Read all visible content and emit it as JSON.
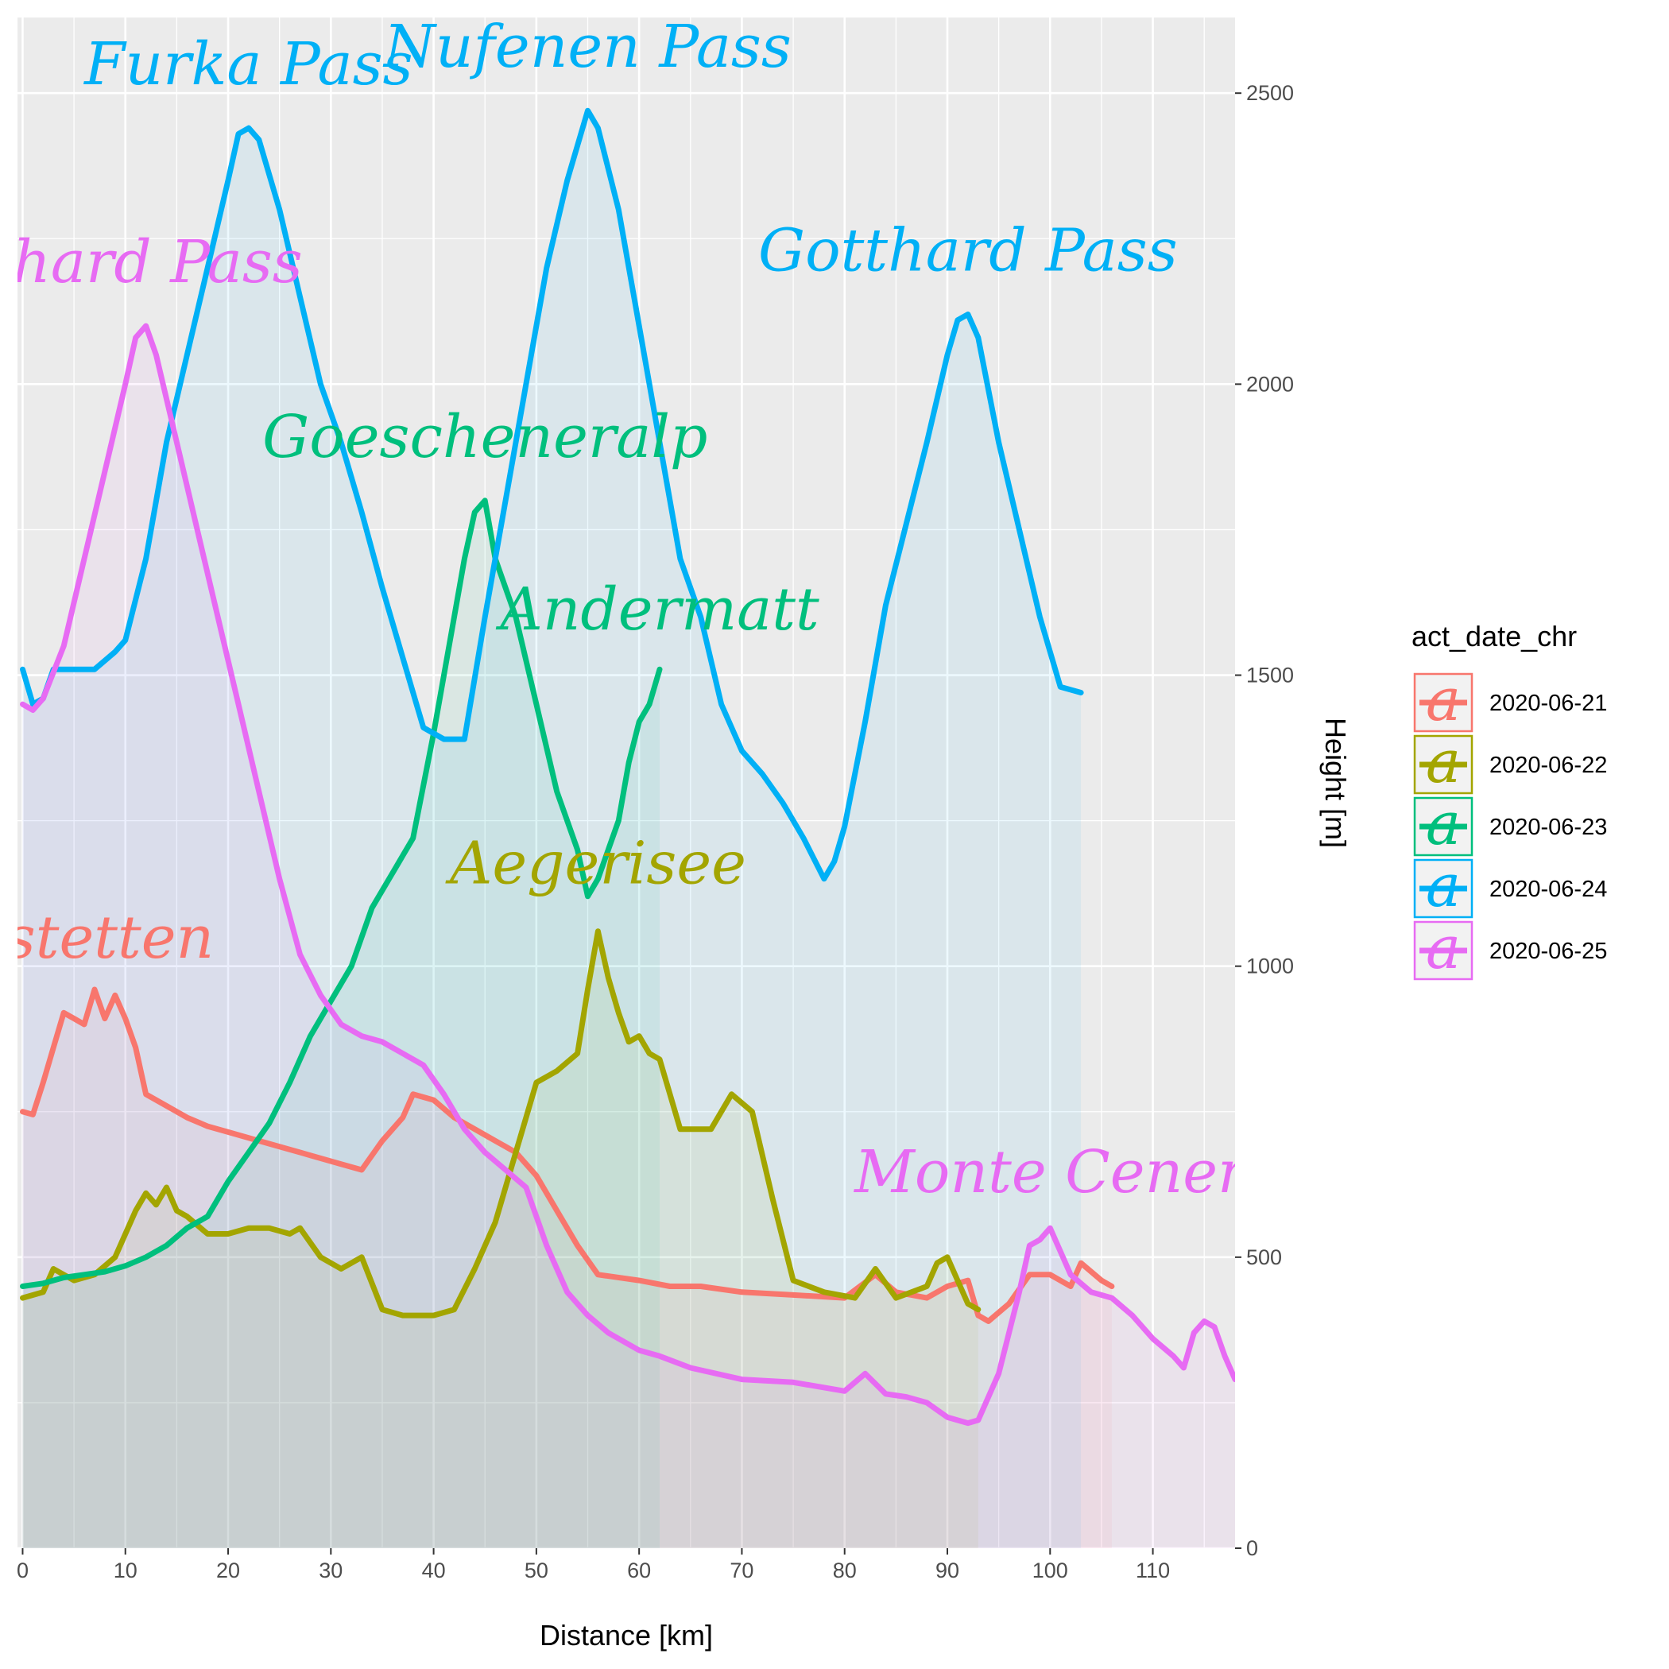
{
  "chart_data": {
    "type": "area",
    "title": "",
    "xlabel": "Distance [km]",
    "ylabel": "Height [m]",
    "xlim": [
      -0.5,
      118
    ],
    "ylim": [
      0,
      2630
    ],
    "x_ticks": [
      0,
      10,
      20,
      30,
      40,
      50,
      60,
      70,
      80,
      90,
      100,
      110
    ],
    "y_ticks": [
      0,
      500,
      1000,
      1500,
      2000,
      2500
    ],
    "y_axis_position": "right",
    "grid": true,
    "legend": {
      "title": "act_date_chr",
      "position": "right",
      "key_glyph": "a"
    },
    "series": [
      {
        "name": "2020-06-21",
        "color": "#F8766D",
        "points": [
          [
            0,
            750
          ],
          [
            1,
            745
          ],
          [
            2,
            800
          ],
          [
            3,
            860
          ],
          [
            4,
            920
          ],
          [
            5,
            910
          ],
          [
            6,
            900
          ],
          [
            7,
            960
          ],
          [
            8,
            910
          ],
          [
            9,
            950
          ],
          [
            10,
            910
          ],
          [
            11,
            860
          ],
          [
            12,
            780
          ],
          [
            14,
            760
          ],
          [
            16,
            740
          ],
          [
            18,
            725
          ],
          [
            20,
            715
          ],
          [
            22,
            705
          ],
          [
            25,
            690
          ],
          [
            28,
            675
          ],
          [
            31,
            660
          ],
          [
            33,
            650
          ],
          [
            35,
            700
          ],
          [
            37,
            740
          ],
          [
            38,
            780
          ],
          [
            40,
            770
          ],
          [
            42,
            740
          ],
          [
            44,
            720
          ],
          [
            46,
            700
          ],
          [
            48,
            680
          ],
          [
            50,
            640
          ],
          [
            52,
            580
          ],
          [
            54,
            520
          ],
          [
            56,
            470
          ],
          [
            60,
            460
          ],
          [
            63,
            450
          ],
          [
            66,
            450
          ],
          [
            70,
            440
          ],
          [
            75,
            435
          ],
          [
            80,
            430
          ],
          [
            83,
            470
          ],
          [
            85,
            440
          ],
          [
            88,
            430
          ],
          [
            90,
            450
          ],
          [
            92,
            460
          ],
          [
            93,
            400
          ],
          [
            94,
            390
          ],
          [
            96,
            420
          ],
          [
            98,
            470
          ],
          [
            100,
            470
          ],
          [
            102,
            450
          ],
          [
            103,
            490
          ],
          [
            105,
            460
          ],
          [
            106,
            450
          ]
        ]
      },
      {
        "name": "2020-06-22",
        "color": "#A3A500",
        "points": [
          [
            0,
            430
          ],
          [
            2,
            440
          ],
          [
            3,
            480
          ],
          [
            5,
            460
          ],
          [
            7,
            470
          ],
          [
            9,
            500
          ],
          [
            11,
            580
          ],
          [
            12,
            610
          ],
          [
            13,
            590
          ],
          [
            14,
            620
          ],
          [
            15,
            580
          ],
          [
            16,
            570
          ],
          [
            18,
            540
          ],
          [
            20,
            540
          ],
          [
            22,
            550
          ],
          [
            24,
            550
          ],
          [
            26,
            540
          ],
          [
            27,
            550
          ],
          [
            29,
            500
          ],
          [
            31,
            480
          ],
          [
            33,
            500
          ],
          [
            35,
            410
          ],
          [
            37,
            400
          ],
          [
            40,
            400
          ],
          [
            42,
            410
          ],
          [
            44,
            480
          ],
          [
            46,
            560
          ],
          [
            48,
            680
          ],
          [
            50,
            800
          ],
          [
            52,
            820
          ],
          [
            54,
            850
          ],
          [
            55,
            960
          ],
          [
            56,
            1060
          ],
          [
            57,
            980
          ],
          [
            58,
            920
          ],
          [
            59,
            870
          ],
          [
            60,
            880
          ],
          [
            61,
            850
          ],
          [
            62,
            840
          ],
          [
            64,
            720
          ],
          [
            67,
            720
          ],
          [
            69,
            780
          ],
          [
            71,
            750
          ],
          [
            73,
            600
          ],
          [
            75,
            460
          ],
          [
            78,
            440
          ],
          [
            81,
            430
          ],
          [
            83,
            480
          ],
          [
            85,
            430
          ],
          [
            88,
            450
          ],
          [
            89,
            490
          ],
          [
            90,
            500
          ],
          [
            91,
            460
          ],
          [
            92,
            420
          ],
          [
            93,
            410
          ]
        ]
      },
      {
        "name": "2020-06-23",
        "color": "#00BF7D",
        "points": [
          [
            0,
            450
          ],
          [
            2,
            455
          ],
          [
            4,
            465
          ],
          [
            6,
            470
          ],
          [
            8,
            475
          ],
          [
            10,
            485
          ],
          [
            12,
            500
          ],
          [
            14,
            520
          ],
          [
            16,
            550
          ],
          [
            18,
            570
          ],
          [
            20,
            630
          ],
          [
            22,
            680
          ],
          [
            24,
            730
          ],
          [
            26,
            800
          ],
          [
            28,
            880
          ],
          [
            30,
            940
          ],
          [
            32,
            1000
          ],
          [
            34,
            1100
          ],
          [
            36,
            1160
          ],
          [
            38,
            1220
          ],
          [
            40,
            1400
          ],
          [
            42,
            1600
          ],
          [
            43,
            1700
          ],
          [
            44,
            1780
          ],
          [
            45,
            1800
          ],
          [
            46,
            1700
          ],
          [
            48,
            1600
          ],
          [
            50,
            1450
          ],
          [
            52,
            1300
          ],
          [
            54,
            1200
          ],
          [
            55,
            1120
          ],
          [
            56,
            1150
          ],
          [
            58,
            1250
          ],
          [
            59,
            1350
          ],
          [
            60,
            1420
          ],
          [
            61,
            1450
          ],
          [
            62,
            1510
          ]
        ]
      },
      {
        "name": "2020-06-24",
        "color": "#00B0F6",
        "points": [
          [
            0,
            1510
          ],
          [
            1,
            1450
          ],
          [
            2,
            1460
          ],
          [
            3,
            1510
          ],
          [
            5,
            1510
          ],
          [
            7,
            1510
          ],
          [
            9,
            1540
          ],
          [
            10,
            1560
          ],
          [
            12,
            1700
          ],
          [
            14,
            1900
          ],
          [
            16,
            2050
          ],
          [
            18,
            2200
          ],
          [
            20,
            2350
          ],
          [
            21,
            2430
          ],
          [
            22,
            2440
          ],
          [
            23,
            2420
          ],
          [
            25,
            2300
          ],
          [
            27,
            2150
          ],
          [
            29,
            2000
          ],
          [
            31,
            1900
          ],
          [
            33,
            1780
          ],
          [
            35,
            1650
          ],
          [
            37,
            1530
          ],
          [
            39,
            1410
          ],
          [
            41,
            1390
          ],
          [
            43,
            1390
          ],
          [
            45,
            1600
          ],
          [
            47,
            1800
          ],
          [
            49,
            2000
          ],
          [
            51,
            2200
          ],
          [
            53,
            2350
          ],
          [
            55,
            2470
          ],
          [
            56,
            2440
          ],
          [
            58,
            2300
          ],
          [
            60,
            2100
          ],
          [
            62,
            1900
          ],
          [
            64,
            1700
          ],
          [
            66,
            1600
          ],
          [
            68,
            1450
          ],
          [
            70,
            1370
          ],
          [
            72,
            1330
          ],
          [
            74,
            1280
          ],
          [
            76,
            1220
          ],
          [
            78,
            1150
          ],
          [
            79,
            1180
          ],
          [
            80,
            1240
          ],
          [
            82,
            1420
          ],
          [
            84,
            1620
          ],
          [
            86,
            1760
          ],
          [
            88,
            1900
          ],
          [
            90,
            2050
          ],
          [
            91,
            2110
          ],
          [
            92,
            2120
          ],
          [
            93,
            2080
          ],
          [
            95,
            1900
          ],
          [
            97,
            1750
          ],
          [
            99,
            1600
          ],
          [
            101,
            1480
          ],
          [
            103,
            1470
          ]
        ]
      },
      {
        "name": "2020-06-25",
        "color": "#E76BF3",
        "points": [
          [
            0,
            1450
          ],
          [
            1,
            1440
          ],
          [
            2,
            1460
          ],
          [
            4,
            1550
          ],
          [
            6,
            1700
          ],
          [
            8,
            1850
          ],
          [
            10,
            2000
          ],
          [
            11,
            2080
          ],
          [
            12,
            2100
          ],
          [
            13,
            2050
          ],
          [
            15,
            1900
          ],
          [
            17,
            1750
          ],
          [
            19,
            1600
          ],
          [
            21,
            1450
          ],
          [
            23,
            1300
          ],
          [
            25,
            1150
          ],
          [
            27,
            1020
          ],
          [
            29,
            950
          ],
          [
            31,
            900
          ],
          [
            33,
            880
          ],
          [
            35,
            870
          ],
          [
            37,
            850
          ],
          [
            39,
            830
          ],
          [
            41,
            780
          ],
          [
            43,
            720
          ],
          [
            45,
            680
          ],
          [
            47,
            650
          ],
          [
            49,
            620
          ],
          [
            51,
            520
          ],
          [
            53,
            440
          ],
          [
            55,
            400
          ],
          [
            57,
            370
          ],
          [
            60,
            340
          ],
          [
            62,
            330
          ],
          [
            65,
            310
          ],
          [
            70,
            290
          ],
          [
            75,
            285
          ],
          [
            80,
            270
          ],
          [
            82,
            300
          ],
          [
            84,
            265
          ],
          [
            86,
            260
          ],
          [
            88,
            250
          ],
          [
            90,
            225
          ],
          [
            92,
            215
          ],
          [
            93,
            220
          ],
          [
            95,
            300
          ],
          [
            97,
            440
          ],
          [
            98,
            520
          ],
          [
            99,
            530
          ],
          [
            100,
            550
          ],
          [
            102,
            470
          ],
          [
            104,
            440
          ],
          [
            106,
            430
          ],
          [
            108,
            400
          ],
          [
            110,
            360
          ],
          [
            112,
            330
          ],
          [
            113,
            310
          ],
          [
            114,
            370
          ],
          [
            115,
            390
          ],
          [
            116,
            380
          ],
          [
            117,
            330
          ],
          [
            118,
            290
          ]
        ]
      }
    ],
    "annotations": [
      {
        "text": "Furka Pass",
        "series": "2020-06-24",
        "x": 22,
        "y": 2440
      },
      {
        "text": "Nufenen Pass",
        "series": "2020-06-24",
        "x": 55,
        "y": 2470
      },
      {
        "text": "Gotthard Pass",
        "series": "2020-06-24",
        "x": 92,
        "y": 2120
      },
      {
        "text": "Goescheneralp",
        "series": "2020-06-23",
        "x": 45,
        "y": 1800
      },
      {
        "text": "Andermatt",
        "series": "2020-06-23",
        "x": 62,
        "y": 1510
      },
      {
        "text": "Aegerisee",
        "series": "2020-06-22",
        "x": 56,
        "y": 1060
      },
      {
        "text": "thard Pass",
        "series": "2020-06-25",
        "x": 12,
        "y": 2100
      },
      {
        "text": "Monte Cener",
        "series": "2020-06-25",
        "x": 100,
        "y": 550
      },
      {
        "text": "sstetten",
        "series": "2020-06-21",
        "x": 7,
        "y": 960
      }
    ]
  }
}
